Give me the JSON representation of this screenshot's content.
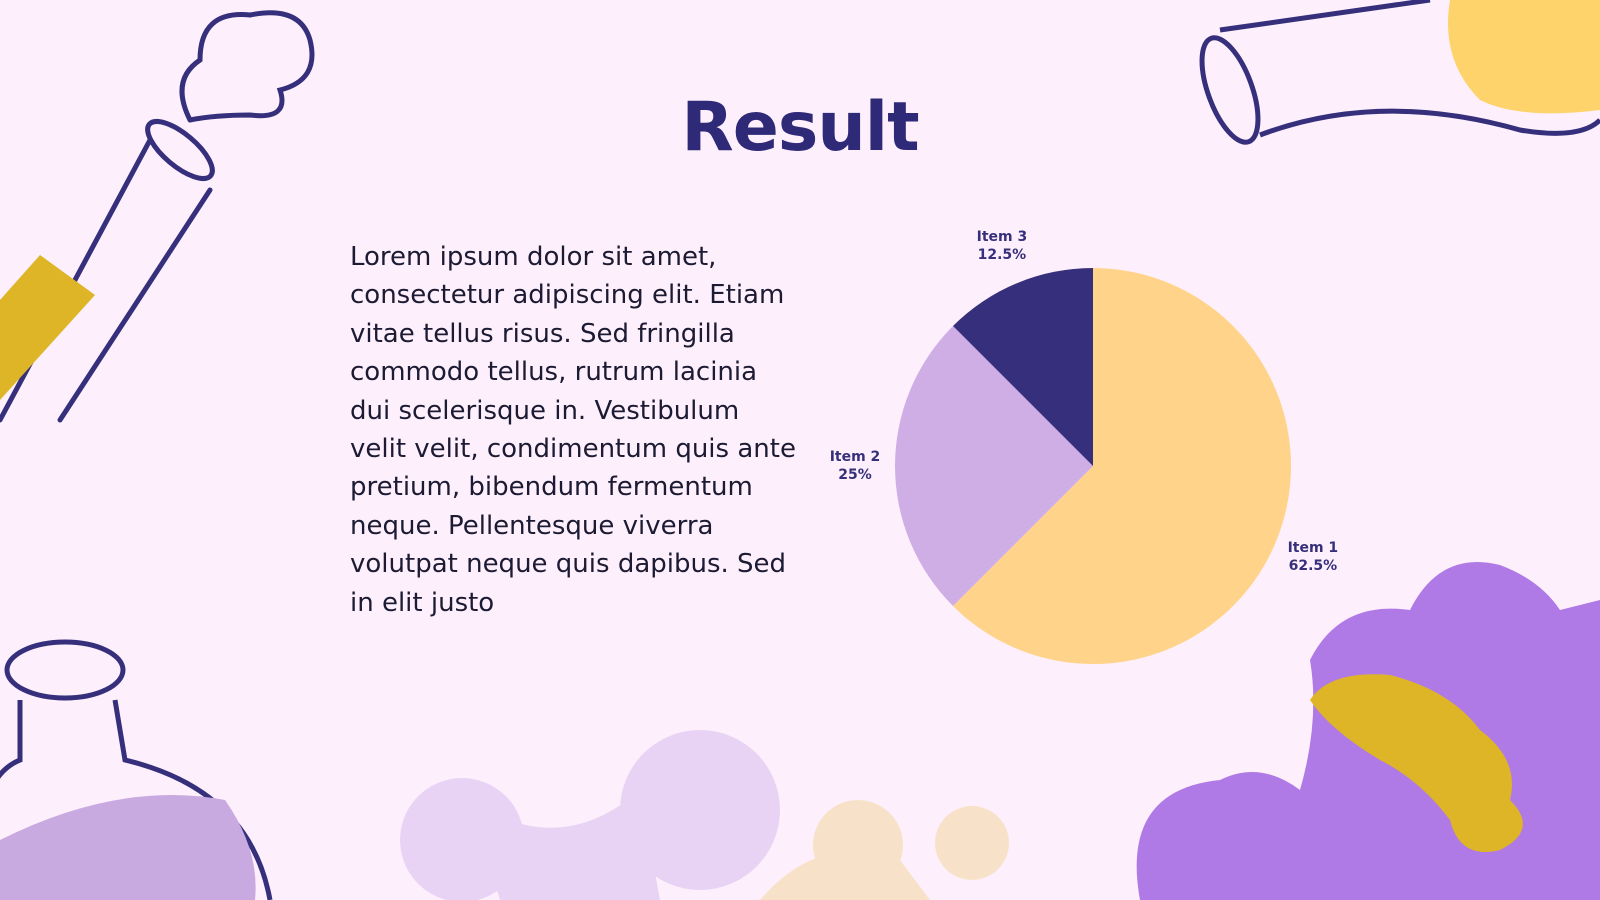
{
  "title": "Result",
  "body": "Lorem ipsum dolor sit amet, consectetur adipiscing elit. Etiam vitae tellus risus. Sed fringilla commodo tellus, rutrum lacinia dui scelerisque in. Vestibulum velit velit, condimentum quis ante pretium, bibendum fermentum neque. Pellentesque viverra volutpat neque quis dapibus. Sed in elit justo",
  "chart_data": {
    "type": "pie",
    "categories": [
      "Item 1",
      "Item 2",
      "Item 3"
    ],
    "values": [
      62.5,
      25,
      12.5
    ],
    "value_labels": [
      "62.5%",
      "25%",
      "12.5%"
    ],
    "colors": [
      "#ffd48a",
      "#cfaee6",
      "#36307c"
    ]
  }
}
